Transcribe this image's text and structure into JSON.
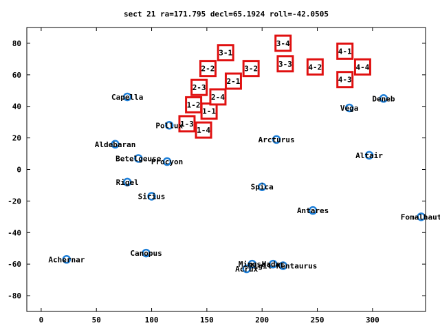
{
  "chart_data": {
    "type": "scatter",
    "title": "sect 21 ra=171.795 decl=65.1924 roll=-42.0505",
    "xlim": [
      -13,
      348
    ],
    "ylim": [
      -90,
      90
    ],
    "xticks": [
      0,
      50,
      100,
      150,
      200,
      250,
      300
    ],
    "yticks": [
      -80,
      -60,
      -40,
      -20,
      0,
      20,
      40,
      60,
      80
    ],
    "grid": false,
    "colors": {
      "star": "#1e7fd8",
      "box": "#e01010",
      "axis": "#000000"
    },
    "stars": [
      {
        "name": "Capella",
        "x": 78,
        "y": 46
      },
      {
        "name": "Pollux",
        "x": 116,
        "y": 28
      },
      {
        "name": "Aldebaran",
        "x": 67,
        "y": 16
      },
      {
        "name": "Betelgeuse",
        "x": 88,
        "y": 7
      },
      {
        "name": "Procyon",
        "x": 114,
        "y": 5
      },
      {
        "name": "Rigel",
        "x": 78,
        "y": -8
      },
      {
        "name": "Sirius",
        "x": 100,
        "y": -17
      },
      {
        "name": "Canopus",
        "x": 95,
        "y": -53
      },
      {
        "name": "Achernar",
        "x": 23,
        "y": -57
      },
      {
        "name": "Arcturus",
        "x": 213,
        "y": 19
      },
      {
        "name": "Spica",
        "x": 200,
        "y": -11
      },
      {
        "name": "Antares",
        "x": 246,
        "y": -26
      },
      {
        "name": "Mimosa",
        "x": 191,
        "y": -60
      },
      {
        "name": "Acrux",
        "x": 186,
        "y": -63
      },
      {
        "name": "Hadar",
        "x": 210,
        "y": -60
      },
      {
        "name": "Rigil Kentaurus",
        "x": 219,
        "y": -61
      },
      {
        "name": "Vega",
        "x": 279,
        "y": 39
      },
      {
        "name": "Deneb",
        "x": 310,
        "y": 45
      },
      {
        "name": "Altair",
        "x": 297,
        "y": 9
      },
      {
        "name": "Fomalhaut",
        "x": 344,
        "y": -30
      }
    ],
    "visible_star_labels": [
      {
        "text": "Capella",
        "x": 78,
        "y": 46
      },
      {
        "text": "Pollux",
        "x": 116,
        "y": 28
      },
      {
        "text": "Aldebaran",
        "x": 67,
        "y": 16
      },
      {
        "text": "Betelgeuse",
        "x": 88,
        "y": 7
      },
      {
        "text": "Procyon",
        "x": 114,
        "y": 5
      },
      {
        "text": "Rigel",
        "x": 78,
        "y": -8
      },
      {
        "text": "Sirius",
        "x": 100,
        "y": -17
      },
      {
        "text": "Canopus",
        "x": 95,
        "y": -53
      },
      {
        "text": "Achernar",
        "x": 23,
        "y": -57
      },
      {
        "text": "Arcturus",
        "x": 213,
        "y": 19
      },
      {
        "text": "Spica",
        "x": 200,
        "y": -11
      },
      {
        "text": "Antares",
        "x": 246,
        "y": -26
      },
      {
        "text": "Mimosa",
        "x": 191,
        "y": -60
      },
      {
        "text": "Acrux",
        "x": 186,
        "y": -63
      },
      {
        "text": "Hadar",
        "x": 210,
        "y": -60
      },
      {
        "text": "Rigil Kentaurus",
        "x": 219,
        "y": -61
      },
      {
        "text": "Vega",
        "x": 279,
        "y": 39
      },
      {
        "text": "Deneb",
        "x": 310,
        "y": 45
      },
      {
        "text": "Altair",
        "x": 297,
        "y": 9
      },
      {
        "text": "Fomalhaut",
        "x": 344,
        "y": -30
      }
    ],
    "sectors": [
      {
        "name": "1-1",
        "x": 152,
        "y": 37
      },
      {
        "name": "1-2",
        "x": 138,
        "y": 41
      },
      {
        "name": "1-3",
        "x": 132,
        "y": 29
      },
      {
        "name": "1-4",
        "x": 147,
        "y": 25
      },
      {
        "name": "2-1",
        "x": 174,
        "y": 56
      },
      {
        "name": "2-2",
        "x": 151,
        "y": 64
      },
      {
        "name": "2-3",
        "x": 143,
        "y": 52
      },
      {
        "name": "2-4",
        "x": 160,
        "y": 46
      },
      {
        "name": "3-1",
        "x": 167,
        "y": 74
      },
      {
        "name": "3-2",
        "x": 190,
        "y": 64
      },
      {
        "name": "3-3",
        "x": 221,
        "y": 67
      },
      {
        "name": "3-4",
        "x": 219,
        "y": 80
      },
      {
        "name": "4-1",
        "x": 275,
        "y": 75
      },
      {
        "name": "4-2",
        "x": 248,
        "y": 65
      },
      {
        "name": "4-3",
        "x": 275,
        "y": 57
      },
      {
        "name": "4-4",
        "x": 291,
        "y": 65
      }
    ]
  }
}
